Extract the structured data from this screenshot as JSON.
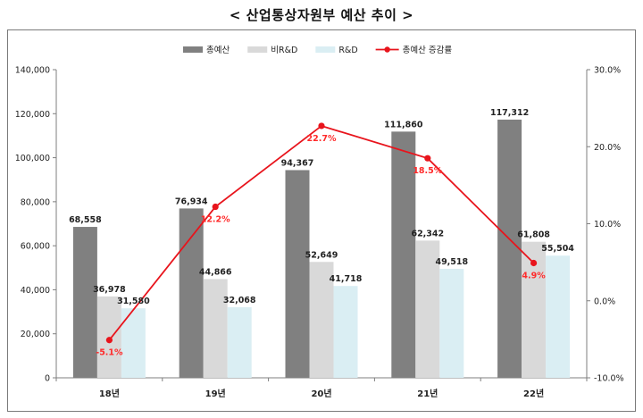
{
  "page": {
    "title": "< 산업통상자원부 예산 추이 >"
  },
  "chart_data": {
    "type": "bar",
    "title": "< 산업통상자원부 예산 추이 >",
    "categories": [
      "18년",
      "19년",
      "20년",
      "21년",
      "22년"
    ],
    "series": [
      {
        "name": "총예산",
        "type": "bar",
        "axis": "left",
        "color": "#808080",
        "values": [
          68558,
          76934,
          94367,
          111860,
          117312
        ],
        "labels": [
          "68,558",
          "76,934",
          "94,367",
          "111,860",
          "117,312"
        ]
      },
      {
        "name": "비R&D",
        "type": "bar",
        "axis": "left",
        "color": "#d9d9d9",
        "values": [
          36978,
          44866,
          52649,
          62342,
          61808
        ],
        "labels": [
          "36,978",
          "44,866",
          "52,649",
          "62,342",
          "61,808"
        ]
      },
      {
        "name": "R&D",
        "type": "bar",
        "axis": "left",
        "color": "#daeef3",
        "values": [
          31580,
          32068,
          41718,
          49518,
          55504
        ],
        "labels": [
          "31,580",
          "32,068",
          "41,718",
          "49,518",
          "55,504"
        ]
      },
      {
        "name": "총예산 증감률",
        "type": "line",
        "axis": "right",
        "color": "#e8141c",
        "values": [
          -5.1,
          12.2,
          22.7,
          18.5,
          4.9
        ],
        "labels": [
          "-5.1%",
          "12.2%",
          "22.7%",
          "18.5%",
          "4.9%"
        ]
      }
    ],
    "y_left": {
      "min": 0,
      "max": 140000,
      "step": 20000,
      "tick_labels": [
        "0",
        "20,000",
        "40,000",
        "60,000",
        "80,000",
        "100,000",
        "120,000",
        "140,000"
      ]
    },
    "y_right": {
      "min": -10,
      "max": 30,
      "step": 10,
      "tick_labels": [
        "-10.0%",
        "0.0%",
        "10.0%",
        "20.0%",
        "30.0%"
      ]
    },
    "grid": false,
    "legend_position": "top"
  }
}
